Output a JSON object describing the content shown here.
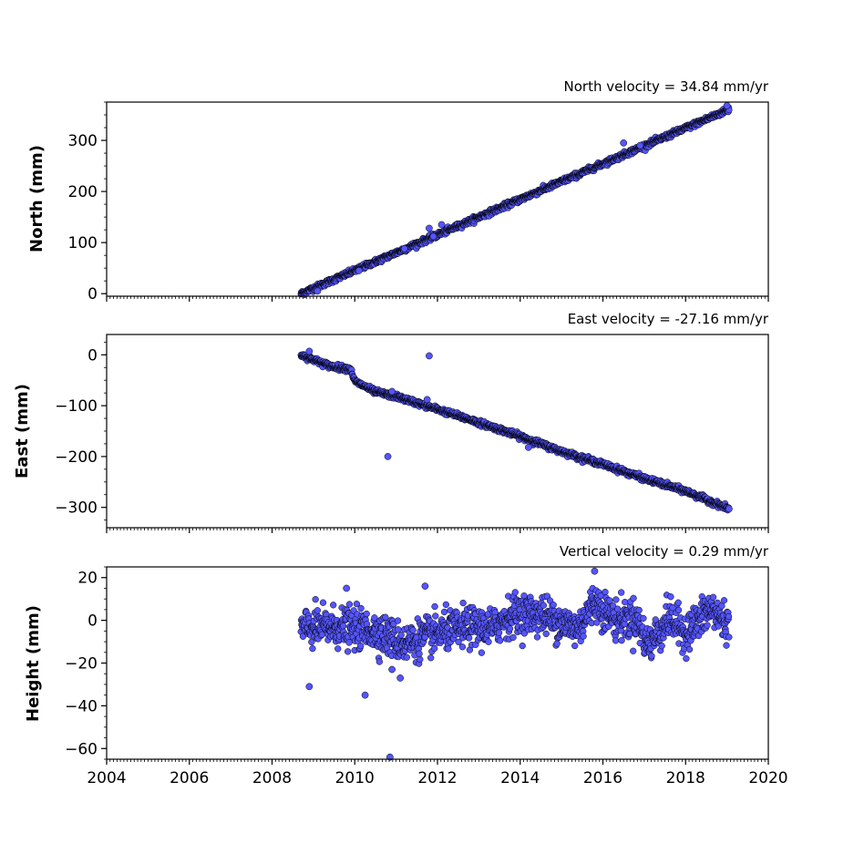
{
  "chart_data": [
    {
      "type": "scatter",
      "title": "North velocity = 34.84 mm/yr",
      "xlabel": "",
      "ylabel": "North (mm)",
      "xlim": [
        2004,
        2020
      ],
      "ylim": [
        -5,
        375
      ],
      "xticks": [
        2004,
        2006,
        2008,
        2010,
        2012,
        2014,
        2016,
        2018,
        2020
      ],
      "yticks": [
        0,
        100,
        200,
        300
      ],
      "ytick_labels": [
        "0",
        "100",
        "200",
        "300"
      ],
      "trend": {
        "x_start": 2008.7,
        "x_end": 2019.05,
        "slope_mm_per_yr": 34.84,
        "y_start": 0
      },
      "noise_mm": 2.5,
      "outliers": [
        {
          "x": 2009.1,
          "y": 5
        },
        {
          "x": 2010.1,
          "y": 45
        },
        {
          "x": 2011.2,
          "y": 88
        },
        {
          "x": 2011.8,
          "y": 128
        },
        {
          "x": 2011.9,
          "y": 112
        },
        {
          "x": 2012.1,
          "y": 135
        },
        {
          "x": 2016.5,
          "y": 295
        },
        {
          "x": 2016.9,
          "y": 290
        },
        {
          "x": 2019.0,
          "y": 368
        }
      ],
      "grid": false,
      "marker_color": "#5555ff",
      "edge_color": "#000000"
    },
    {
      "type": "scatter",
      "title": "East velocity = -27.16 mm/yr",
      "xlabel": "",
      "ylabel": "East (mm)",
      "xlim": [
        2004,
        2020
      ],
      "ylim": [
        -340,
        40
      ],
      "xticks": [
        2004,
        2006,
        2008,
        2010,
        2012,
        2014,
        2016,
        2018,
        2020
      ],
      "yticks": [
        0,
        -100,
        -200,
        -300
      ],
      "ytick_labels": [
        "0",
        "−100",
        "−200",
        "−300"
      ],
      "trend_points": [
        {
          "x": 2008.7,
          "y": 0
        },
        {
          "x": 2009.4,
          "y": -22
        },
        {
          "x": 2009.9,
          "y": -28
        },
        {
          "x": 2010.0,
          "y": -52
        },
        {
          "x": 2010.5,
          "y": -73
        },
        {
          "x": 2011.0,
          "y": -82
        },
        {
          "x": 2012.0,
          "y": -107
        },
        {
          "x": 2013.0,
          "y": -133
        },
        {
          "x": 2014.0,
          "y": -160
        },
        {
          "x": 2015.0,
          "y": -190
        },
        {
          "x": 2016.0,
          "y": -215
        },
        {
          "x": 2017.0,
          "y": -243
        },
        {
          "x": 2018.0,
          "y": -268
        },
        {
          "x": 2019.05,
          "y": -303
        }
      ],
      "noise_mm": 2.5,
      "outliers": [
        {
          "x": 2008.9,
          "y": 7
        },
        {
          "x": 2010.8,
          "y": -200
        },
        {
          "x": 2010.9,
          "y": -72
        },
        {
          "x": 2011.8,
          "y": -2
        },
        {
          "x": 2011.75,
          "y": -88
        },
        {
          "x": 2014.2,
          "y": -182
        },
        {
          "x": 2019.05,
          "y": -303
        }
      ],
      "grid": false,
      "marker_color": "#5555ff",
      "edge_color": "#000000"
    },
    {
      "type": "scatter",
      "title": "Vertical velocity = 0.29 mm/yr",
      "xlabel": "",
      "ylabel": "Height (mm)",
      "xlim": [
        2004,
        2020
      ],
      "ylim": [
        -65,
        25
      ],
      "xticks": [
        2004,
        2006,
        2008,
        2010,
        2012,
        2014,
        2016,
        2018,
        2020
      ],
      "xtick_labels": [
        "2004",
        "2006",
        "2008",
        "2010",
        "2012",
        "2014",
        "2016",
        "2018",
        "2020"
      ],
      "yticks": [
        20,
        0,
        -20,
        -40,
        -60
      ],
      "ytick_labels": [
        "20",
        "0",
        "−20",
        "−40",
        "−60"
      ],
      "mean_curve": [
        {
          "x": 2008.7,
          "y": -4
        },
        {
          "x": 2009.5,
          "y": -3
        },
        {
          "x": 2010.5,
          "y": -5
        },
        {
          "x": 2011.2,
          "y": -11
        },
        {
          "x": 2012.0,
          "y": -6
        },
        {
          "x": 2012.8,
          "y": -3
        },
        {
          "x": 2013.3,
          "y": -4
        },
        {
          "x": 2013.8,
          "y": 3
        },
        {
          "x": 2014.5,
          "y": 3
        },
        {
          "x": 2015.0,
          "y": -1
        },
        {
          "x": 2015.4,
          "y": -4
        },
        {
          "x": 2015.8,
          "y": 9
        },
        {
          "x": 2016.3,
          "y": 0
        },
        {
          "x": 2016.8,
          "y": 1
        },
        {
          "x": 2017.1,
          "y": -12
        },
        {
          "x": 2017.6,
          "y": 1
        },
        {
          "x": 2018.0,
          "y": -6
        },
        {
          "x": 2018.6,
          "y": 5
        },
        {
          "x": 2019.05,
          "y": -2
        }
      ],
      "noise_mm": 4.5,
      "outliers": [
        {
          "x": 2008.9,
          "y": -31
        },
        {
          "x": 2010.25,
          "y": -35
        },
        {
          "x": 2010.85,
          "y": -64
        },
        {
          "x": 2011.7,
          "y": 16
        },
        {
          "x": 2009.8,
          "y": 15
        },
        {
          "x": 2015.8,
          "y": 23
        },
        {
          "x": 2011.1,
          "y": -27
        },
        {
          "x": 2010.9,
          "y": -23
        }
      ],
      "grid": false,
      "marker_color": "#5555ff",
      "edge_color": "#000000"
    }
  ]
}
